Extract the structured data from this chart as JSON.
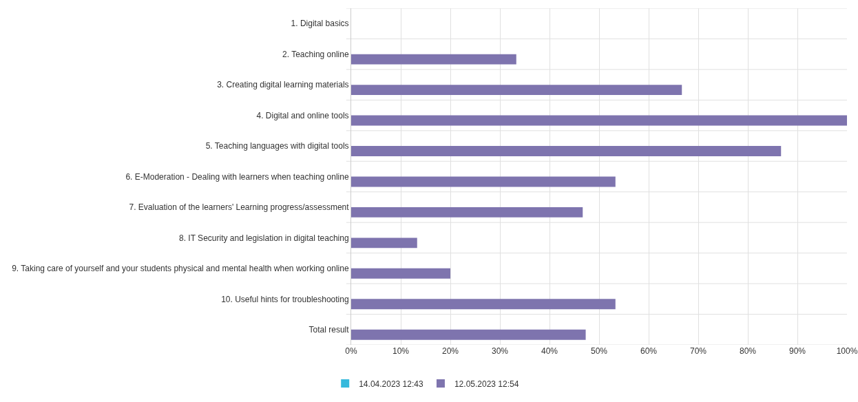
{
  "chart_data": {
    "type": "bar",
    "orientation": "horizontal",
    "categories": [
      "1. Digital basics",
      "2. Teaching online",
      "3. Creating digital learning materials",
      "4. Digital and online tools",
      "5. Teaching languages with digital tools",
      "6. E-Moderation - Dealing with learners when teaching online",
      "7. Evaluation of the learners' Learning progress/assessment",
      "8. IT Security and legislation in digital teaching",
      "9. Taking care of yourself and your students physical and mental health when working online",
      "10. Useful hints for troubleshooting",
      "Total result"
    ],
    "series": [
      {
        "name": "14.04.2023 12:43",
        "color": "#36b9dc",
        "values": [
          0,
          0,
          0,
          0,
          0,
          0,
          0,
          0,
          0,
          0,
          0
        ]
      },
      {
        "name": "12.05.2023 12:54",
        "color": "#7e74ae",
        "values": [
          null,
          33.3,
          66.7,
          100,
          86.7,
          53.3,
          46.7,
          13.3,
          20,
          53.3,
          47.3
        ]
      }
    ],
    "xlim": [
      0,
      100
    ],
    "xticks": [
      {
        "value": 0,
        "label": "0%"
      },
      {
        "value": 10,
        "label": "10%"
      },
      {
        "value": 20,
        "label": "20%"
      },
      {
        "value": 30,
        "label": "30%"
      },
      {
        "value": 40,
        "label": "40%"
      },
      {
        "value": 50,
        "label": "50%"
      },
      {
        "value": 60,
        "label": "60%"
      },
      {
        "value": 70,
        "label": "70%"
      },
      {
        "value": 80,
        "label": "80%"
      },
      {
        "value": 90,
        "label": "90%"
      },
      {
        "value": 100,
        "label": "100%"
      }
    ],
    "grid": true,
    "legend": "bottom"
  }
}
